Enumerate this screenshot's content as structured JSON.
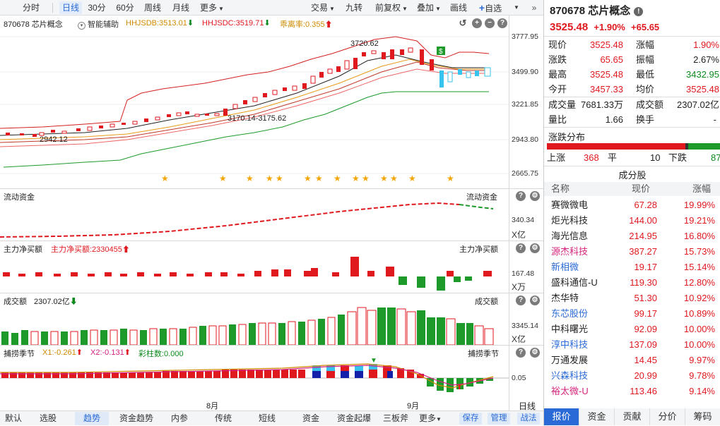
{
  "toolbar": {
    "left": [
      "分时",
      "日线",
      "30分",
      "60分",
      "周线",
      "月线",
      "更多"
    ],
    "active": "日线",
    "right": [
      "交易",
      "九转",
      "前复权",
      "叠加",
      "画线",
      "自选"
    ]
  },
  "main": {
    "title": "870678 芯片概念",
    "assist": "智能辅助",
    "hhjsdb": "HHJSDB:3513.01",
    "hhjsdc": "HHJSDC:3519.71",
    "qlv": "乖离率:0.355",
    "yaxis": [
      "3777.95",
      "3499.90",
      "3221.85",
      "2943.80",
      "2665.75"
    ],
    "high_label": "3720.62",
    "low_label": "2942.12",
    "mid_label": "3170.14-3175.62"
  },
  "flow": {
    "title": "流动资金",
    "right_title": "流动资金",
    "yvalue": "340.34",
    "unit": "X亿"
  },
  "net": {
    "title": "主力净买额",
    "value": "主力净买额:2330455",
    "right_title": "主力净买额",
    "yvalue": "167.48",
    "unit": "X万"
  },
  "vol": {
    "title": "成交额",
    "value": "2307.02亿",
    "right_title": "成交额",
    "yvalue": "3345.14",
    "unit": "X亿"
  },
  "season": {
    "title": "捕捞季节",
    "x1": "X1:-0.261",
    "x2": "X2:-0.131",
    "cz": "彩柱数:0.000",
    "right_title": "捕捞季节",
    "yvalue": "0.05"
  },
  "xaxis": {
    "aug": "8月",
    "sep": "9月",
    "period": "日线"
  },
  "bottom_tabs": [
    "默认",
    "选股",
    "趋势",
    "资金趋势",
    "内参",
    "传统",
    "短线",
    "资金",
    "资金起爆",
    "三板斧",
    "更多"
  ],
  "bottom_active": "趋势",
  "bottom_buttons": [
    "保存",
    "管理",
    "战法"
  ],
  "quote": {
    "code_name": "870678 芯片概念",
    "price": "3525.48",
    "pct": "+1.90%",
    "chg": "+65.65",
    "rows": [
      [
        "现价",
        "3525.48",
        "涨幅",
        "1.90%"
      ],
      [
        "涨跌",
        "65.65",
        "振幅",
        "2.67%"
      ],
      [
        "最高",
        "3525.48",
        "最低",
        "3432.95"
      ],
      [
        "今开",
        "3457.33",
        "均价",
        "3525.48"
      ],
      [
        "成交量",
        "7681.33万",
        "成交额",
        "2307.02亿"
      ],
      [
        "量比",
        "1.66",
        "换手",
        "-"
      ]
    ],
    "dist_title": "涨跌分布",
    "up_label": "上涨",
    "up": "368",
    "flat_label": "平",
    "flat": "10",
    "down_label": "下跌",
    "down": "87",
    "comp_title": "成分股",
    "headers": [
      "名称",
      "现价",
      "涨幅"
    ],
    "stocks": [
      {
        "name": "赛微微电",
        "price": "67.28",
        "pct": "19.99%",
        "color": "#222"
      },
      {
        "name": "炬光科技",
        "price": "144.00",
        "pct": "19.21%",
        "color": "#222"
      },
      {
        "name": "海光信息",
        "price": "214.95",
        "pct": "16.80%",
        "color": "#222"
      },
      {
        "name": "源杰科技",
        "price": "387.27",
        "pct": "15.73%",
        "color": "#d6247c"
      },
      {
        "name": "新相微",
        "price": "19.17",
        "pct": "15.14%",
        "color": "#2a6ad6"
      },
      {
        "name": "盛科通信-U",
        "price": "119.30",
        "pct": "12.80%",
        "color": "#222"
      },
      {
        "name": "杰华特",
        "price": "51.30",
        "pct": "10.92%",
        "color": "#222"
      },
      {
        "name": "东芯股份",
        "price": "99.17",
        "pct": "10.89%",
        "color": "#2a6ad6"
      },
      {
        "name": "中科曙光",
        "price": "92.09",
        "pct": "10.00%",
        "color": "#222"
      },
      {
        "name": "淳中科技",
        "price": "137.09",
        "pct": "10.00%",
        "color": "#2a6ad6"
      },
      {
        "name": "万通发展",
        "price": "14.45",
        "pct": "9.97%",
        "color": "#222"
      },
      {
        "name": "兴森科技",
        "price": "20.99",
        "pct": "9.78%",
        "color": "#2a6ad6"
      },
      {
        "name": "裕太微-U",
        "price": "113.46",
        "pct": "9.14%",
        "color": "#d6247c"
      }
    ],
    "tabs": [
      "报价",
      "资金",
      "贡献",
      "分价",
      "筹码"
    ],
    "active_tab": "报价"
  },
  "colors": {
    "up": "#e0191f",
    "down": "#0c8a1e",
    "accent": "#2a6ad6"
  }
}
